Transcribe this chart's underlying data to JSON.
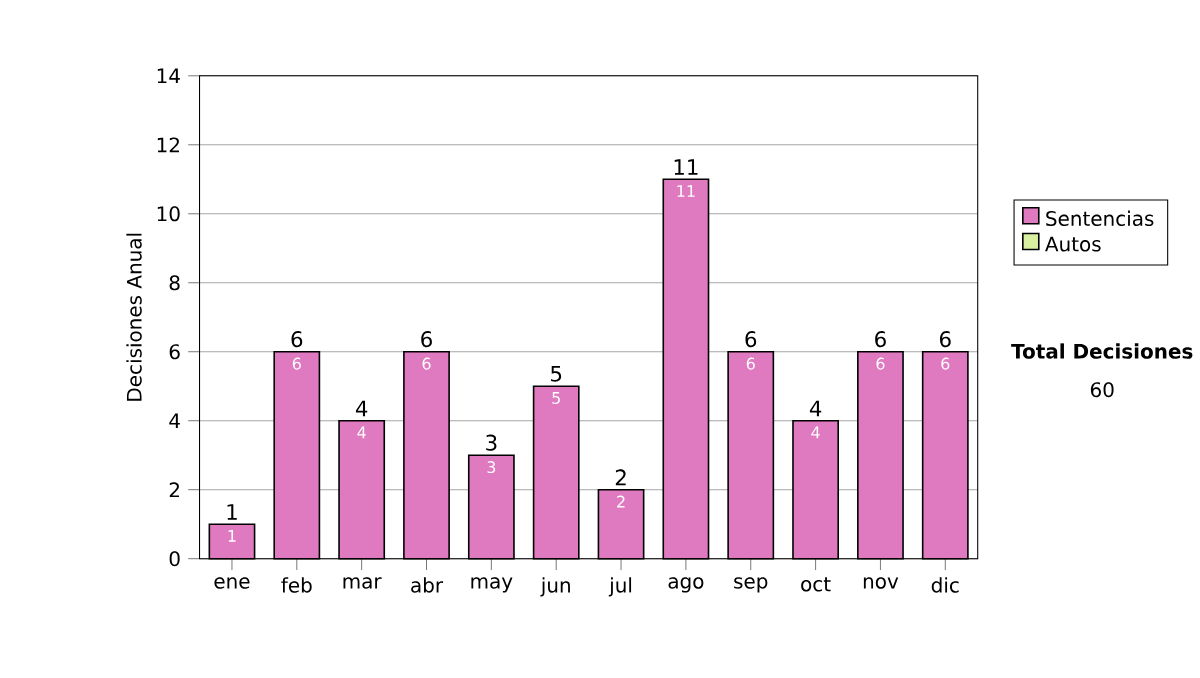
{
  "chart_data": {
    "type": "bar",
    "stacked": true,
    "ylabel": "Decisiones Anual",
    "categories": [
      "ene",
      "feb",
      "mar",
      "abr",
      "may",
      "jun",
      "jul",
      "ago",
      "sep",
      "oct",
      "nov",
      "dic"
    ],
    "series": [
      {
        "name": "Sentencias",
        "color": "#e07ac0",
        "values": [
          1,
          6,
          4,
          6,
          3,
          5,
          2,
          11,
          6,
          4,
          6,
          6
        ],
        "value_labels": [
          "1",
          "6",
          "4",
          "6",
          "3",
          "5",
          "2",
          "11",
          "6",
          "4",
          "6",
          "6"
        ]
      },
      {
        "name": "Autos",
        "color": "#d9f0a0",
        "values": [
          0,
          0,
          0,
          0,
          0,
          0,
          0,
          0,
          0,
          0,
          0,
          0
        ]
      }
    ],
    "totals": [
      "1",
      "6",
      "4",
      "6",
      "3",
      "5",
      "2",
      "11",
      "6",
      "4",
      "6",
      "6"
    ],
    "ylim": [
      0,
      14
    ],
    "yticks": [
      0,
      2,
      4,
      6,
      8,
      10,
      12,
      14
    ],
    "grid": "y",
    "legend": "right",
    "annotations": [
      "Total Decisiones",
      "60"
    ]
  }
}
